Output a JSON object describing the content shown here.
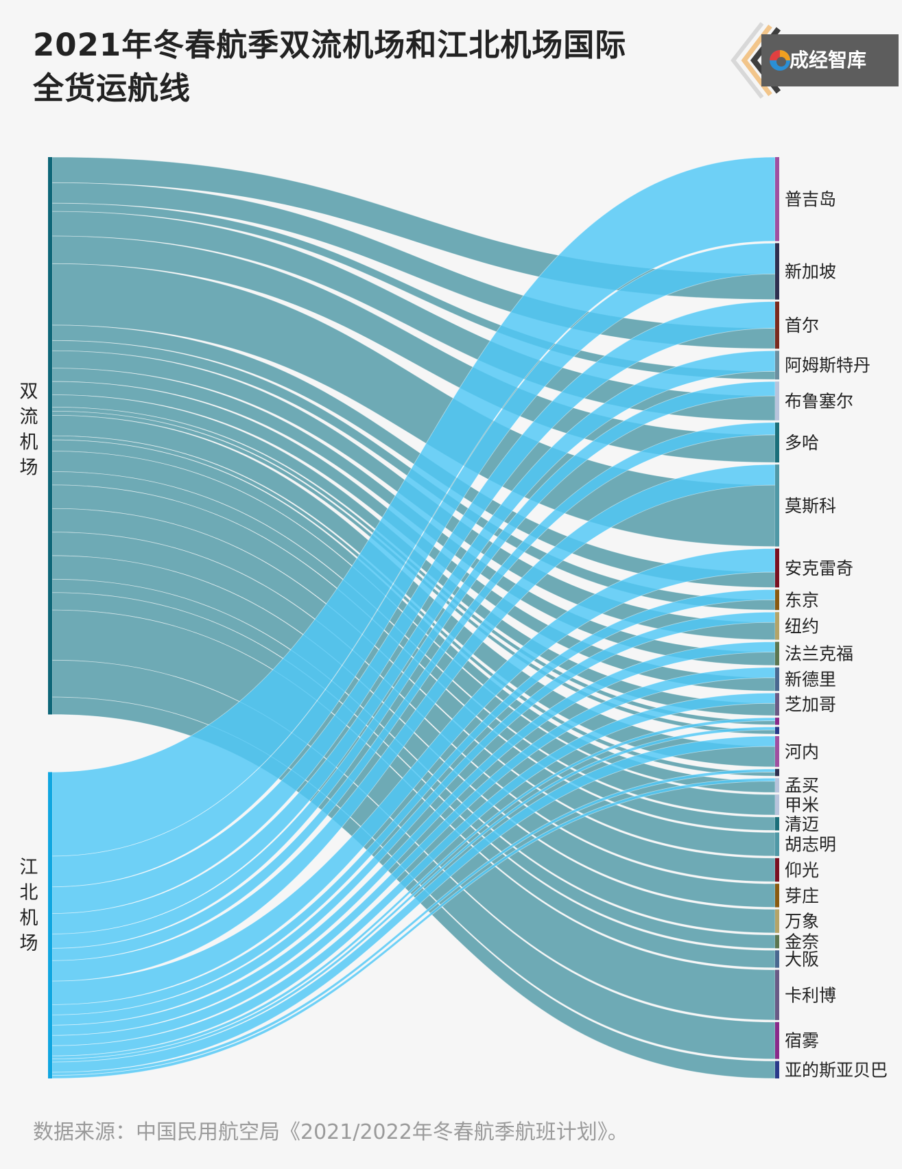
{
  "title_line1": "2021年冬春航季双流机场和江北机场国际",
  "title_line2": "全货运航线",
  "brand": "成经智库",
  "source": "数据来源：中国民用航空局《2021/2022年冬春航季航班计划》。",
  "colors": {
    "shuangliu_flow": "#4f98a6",
    "jiangbei_flow": "#4fc7f5",
    "shuangliu_node": "#0e6678",
    "jiangbei_node": "#10a6e0",
    "label": "#222222"
  },
  "chart_data": {
    "type": "sankey",
    "sources": [
      {
        "name": "双流机场",
        "label_chars": [
          "双",
          "流",
          "机",
          "场"
        ]
      },
      {
        "name": "江北机场",
        "label_chars": [
          "江",
          "北",
          "机",
          "场"
        ]
      }
    ],
    "targets": [
      {
        "name": "普吉岛",
        "color": "#a04fa0",
        "shuangliu": 0,
        "jiangbei": 8.2
      },
      {
        "name": "新加坡",
        "color": "#2f2f4f",
        "shuangliu": 2.5,
        "jiangbei": 3.0
      },
      {
        "name": "首尔",
        "color": "#7b2a1e",
        "shuangliu": 2.0,
        "jiangbei": 2.6
      },
      {
        "name": "阿姆斯特丹",
        "color": "#6c8fa0",
        "shuangliu": 0.8,
        "jiangbei": 2.0
      },
      {
        "name": "布鲁塞尔",
        "color": "#b8c4dc",
        "shuangliu": 2.4,
        "jiangbei": 1.4
      },
      {
        "name": "多哈",
        "color": "#1b6f7a",
        "shuangliu": 2.7,
        "jiangbei": 1.2
      },
      {
        "name": "莫斯科",
        "color": "#4f98a6",
        "shuangliu": 6.0,
        "jiangbei": 2.0
      },
      {
        "name": "安克雷奇",
        "color": "#7a1020",
        "shuangliu": 1.5,
        "jiangbei": 2.3
      },
      {
        "name": "东京",
        "color": "#8a5a10",
        "shuangliu": 1.0,
        "jiangbei": 1.0
      },
      {
        "name": "纽约",
        "color": "#b4a468",
        "shuangliu": 1.7,
        "jiangbei": 1.0
      },
      {
        "name": "法兰克福",
        "color": "#5c7650",
        "shuangliu": 1.3,
        "jiangbei": 1.0
      },
      {
        "name": "新德里",
        "color": "#4a6890",
        "shuangliu": 1.3,
        "jiangbei": 1.0
      },
      {
        "name": "芝加哥",
        "color": "#6a5a86",
        "shuangliu": 1.2,
        "jiangbei": 1.0
      },
      {
        "name": "",
        "color": "#8a2a8a",
        "shuangliu": 0.4,
        "jiangbei": 0.3
      },
      {
        "name": "",
        "color": "#2a3a8a",
        "shuangliu": 0.4,
        "jiangbei": 0.3
      },
      {
        "name": "河内",
        "color": "#a04fa0",
        "shuangliu": 2.0,
        "jiangbei": 1.0
      },
      {
        "name": "",
        "color": "#2f2f4f",
        "shuangliu": 0.4,
        "jiangbei": 0.3
      },
      {
        "name": "孟买",
        "color": "#b8c4dc",
        "shuangliu": 1.1,
        "jiangbei": 0.3
      },
      {
        "name": "甲米",
        "color": "#b8c4dc",
        "shuangliu": 2.0,
        "jiangbei": 0
      },
      {
        "name": "清迈",
        "color": "#1b6f7a",
        "shuangliu": 1.3,
        "jiangbei": 0
      },
      {
        "name": "胡志明",
        "color": "#4f98a6",
        "shuangliu": 2.3,
        "jiangbei": 0
      },
      {
        "name": "仰光",
        "color": "#7a1020",
        "shuangliu": 2.3,
        "jiangbei": 0
      },
      {
        "name": "芽庄",
        "color": "#8a5a10",
        "shuangliu": 2.3,
        "jiangbei": 0
      },
      {
        "name": "万象",
        "color": "#b4a468",
        "shuangliu": 2.3,
        "jiangbei": 0
      },
      {
        "name": "金奈",
        "color": "#5c7650",
        "shuangliu": 1.3,
        "jiangbei": 0
      },
      {
        "name": "大阪",
        "color": "#4a6890",
        "shuangliu": 1.7,
        "jiangbei": 0
      },
      {
        "name": "卡利博",
        "color": "#6a5a86",
        "shuangliu": 4.9,
        "jiangbei": 0
      },
      {
        "name": "宿雾",
        "color": "#8a2a8a",
        "shuangliu": 3.6,
        "jiangbei": 0
      },
      {
        "name": "亚的斯亚贝巴",
        "color": "#2a3a8a",
        "shuangliu": 1.7,
        "jiangbei": 0
      }
    ]
  }
}
